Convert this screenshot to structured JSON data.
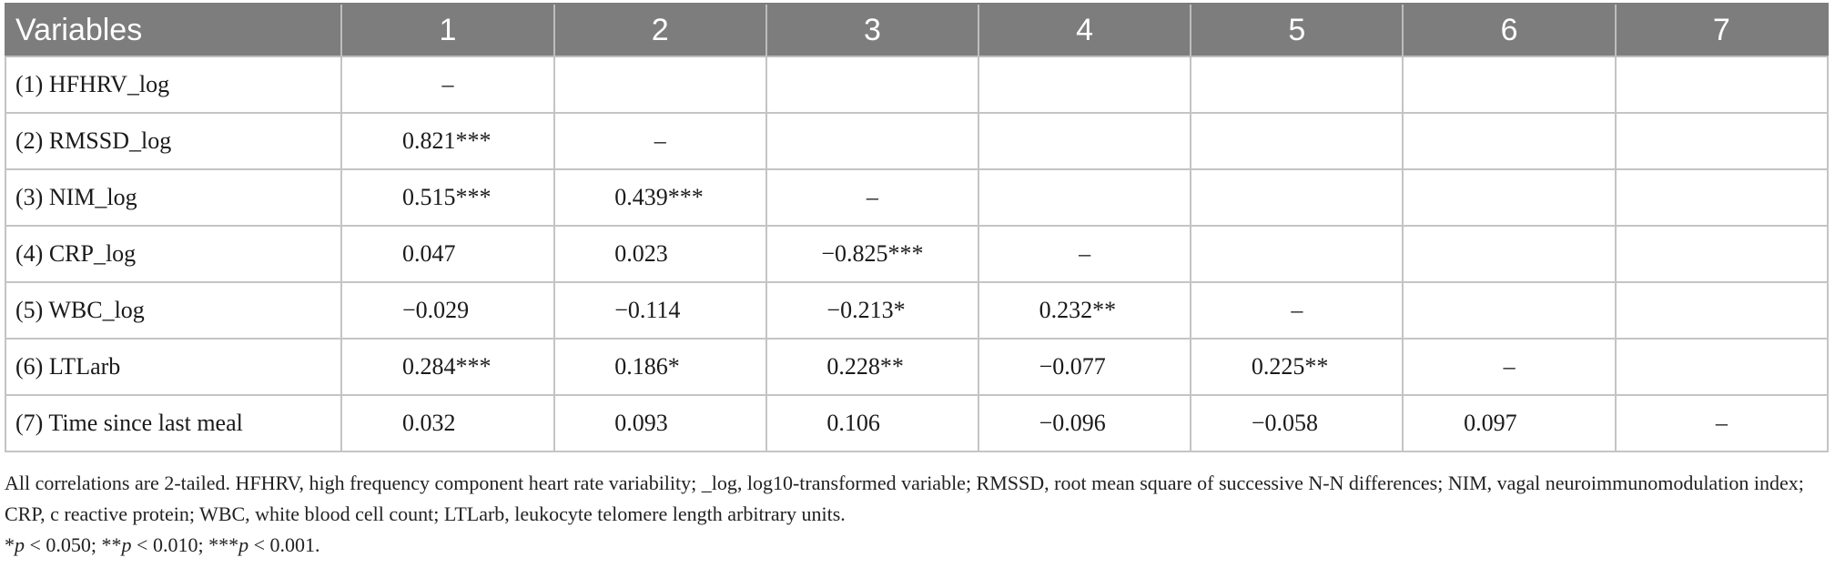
{
  "table": {
    "header": [
      "Variables",
      "1",
      "2",
      "3",
      "4",
      "5",
      "6",
      "7"
    ],
    "rows": [
      {
        "variable": "(1) HFHRV_log",
        "cells": [
          "–",
          "",
          "",
          "",
          "",
          "",
          ""
        ]
      },
      {
        "variable": "(2) RMSSD_log",
        "cells": [
          "0.821***",
          "–",
          "",
          "",
          "",
          "",
          ""
        ]
      },
      {
        "variable": "(3) NIM_log",
        "cells": [
          "0.515***",
          "0.439***",
          "–",
          "",
          "",
          "",
          ""
        ]
      },
      {
        "variable": "(4) CRP_log",
        "cells": [
          "0.047",
          "0.023",
          "−0.825***",
          "–",
          "",
          "",
          ""
        ]
      },
      {
        "variable": "(5) WBC_log",
        "cells": [
          "−0.029",
          "−0.114",
          "−0.213*",
          "0.232**",
          "–",
          "",
          ""
        ]
      },
      {
        "variable": "(6) LTLarb",
        "cells": [
          "0.284***",
          "0.186*",
          "0.228**",
          "−0.077",
          "0.225**",
          "–",
          ""
        ]
      },
      {
        "variable": "(7) Time since last meal",
        "cells": [
          "0.032",
          "0.093",
          "0.106",
          "−0.096",
          "−0.058",
          "0.097",
          "–"
        ]
      }
    ]
  },
  "notes": {
    "footnote": "All correlations are 2-tailed. HFHRV, high frequency component heart rate variability; _log, log10-transformed variable; RMSSD, root mean square of successive N-N differences; NIM, vagal neuroimmunomodulation index; CRP, c reactive protein; WBC, white blood cell count; LTLarb, leukocyte telomere length arbitrary units.",
    "significance": [
      {
        "mark": "*",
        "label": "p",
        "rest": " < 0.050; "
      },
      {
        "mark": "**",
        "label": "p",
        "rest": " < 0.010; "
      },
      {
        "mark": "***",
        "label": "p",
        "rest": " < 0.001."
      }
    ]
  }
}
